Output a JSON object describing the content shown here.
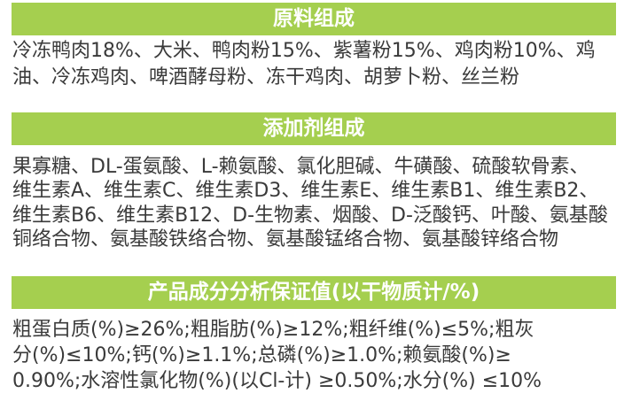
{
  "colors": {
    "banner": "#a5cf4f",
    "text": "#3a3a3a",
    "banner_text": "#ffffff"
  },
  "sections": [
    {
      "title": "原料组成",
      "lines": [
        "冷冻鸭肉18%、大米、鸭肉粉15%、紫薯粉15%、鸡肉粉10%、鸡",
        "油、冷冻鸡肉、啤酒酵母粉、冻干鸡肉、胡萝卜粉、丝兰粉"
      ]
    },
    {
      "title": "添加剂组成",
      "lines": [
        "果寡糖、DL-蛋氨酸、L-赖氨酸、氯化胆碱、牛磺酸、硫酸软骨素、",
        "维生素A、维生素C、维生素D3、维生素E、维生素B1、维生素B2、",
        "维生素B6、维生素B12、D-生物素、烟酸、D-泛酸钙、叶酸、氨基酸",
        "铜络合物、氨基酸铁络合物、氨基酸锰络合物、氨基酸锌络合物"
      ]
    },
    {
      "title": "产品成分分析保证值(以干物质计/%)",
      "lines": [
        "粗蛋白质(%)≥26%;粗脂肪(%)≥12%;粗纤维(%)≤5%;粗灰",
        "分(%)≤10%;钙(%)≥1.1%;总磷(%)≥1.0%;赖氨酸(%)≥",
        "0.90%;水溶性氯化物(%)(以Cl-计) ≥0.50%;水分(%) ≤10%"
      ]
    }
  ]
}
